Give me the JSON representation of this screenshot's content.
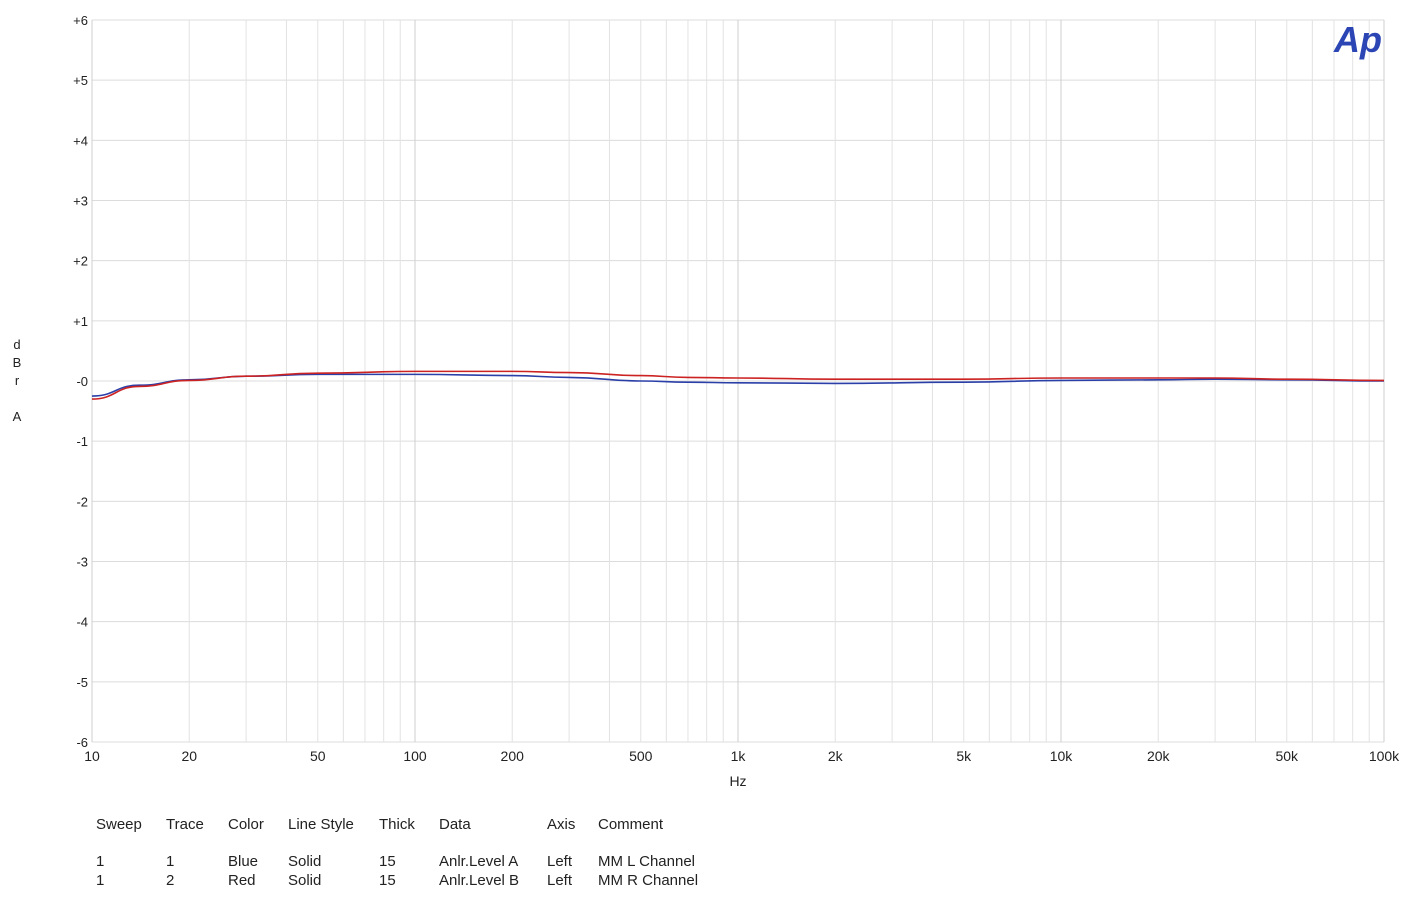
{
  "chart_data": {
    "type": "line",
    "x_scale": "log",
    "xlim": [
      10,
      100000
    ],
    "ylim": [
      -6,
      6
    ],
    "xlabel": "Hz",
    "ylabel": [
      "d",
      "B",
      "r",
      "",
      "A"
    ],
    "y_ticks": [
      "+6",
      "+5",
      "+4",
      "+3",
      "+2",
      "+1",
      "-0",
      "-1",
      "-2",
      "-3",
      "-4",
      "-5",
      "-6"
    ],
    "x_ticks": [
      {
        "value": 10,
        "label": "10"
      },
      {
        "value": 20,
        "label": "20"
      },
      {
        "value": 50,
        "label": "50"
      },
      {
        "value": 100,
        "label": "100"
      },
      {
        "value": 200,
        "label": "200"
      },
      {
        "value": 500,
        "label": "500"
      },
      {
        "value": 1000,
        "label": "1k"
      },
      {
        "value": 2000,
        "label": "2k"
      },
      {
        "value": 5000,
        "label": "5k"
      },
      {
        "value": 10000,
        "label": "10k"
      },
      {
        "value": 20000,
        "label": "20k"
      },
      {
        "value": 50000,
        "label": "50k"
      },
      {
        "value": 100000,
        "label": "100k"
      }
    ],
    "grid": true,
    "series": [
      {
        "color": "#2b3fa8",
        "x": [
          10,
          14,
          20,
          30,
          50,
          100,
          200,
          300,
          500,
          700,
          1000,
          2000,
          5000,
          10000,
          20000,
          30000,
          50000,
          100000
        ],
        "y": [
          -0.25,
          -0.07,
          0.02,
          0.08,
          0.11,
          0.11,
          0.09,
          0.06,
          0.0,
          -0.02,
          -0.03,
          -0.04,
          -0.02,
          0.01,
          0.02,
          0.03,
          0.02,
          0.0
        ]
      },
      {
        "color": "#cc2222",
        "x": [
          10,
          14,
          20,
          30,
          50,
          100,
          200,
          300,
          500,
          700,
          1000,
          2000,
          5000,
          10000,
          20000,
          30000,
          50000,
          100000
        ],
        "y": [
          -0.3,
          -0.09,
          0.01,
          0.08,
          0.13,
          0.16,
          0.16,
          0.14,
          0.09,
          0.06,
          0.05,
          0.03,
          0.03,
          0.05,
          0.05,
          0.05,
          0.03,
          0.01
        ]
      }
    ]
  },
  "legend": {
    "headers": [
      "Sweep",
      "Trace",
      "Color",
      "Line Style",
      "Thick",
      "Data",
      "Axis",
      "Comment"
    ],
    "rows": [
      [
        "1",
        "1",
        "Blue",
        "Solid",
        "15",
        "Anlr.Level A",
        "Left",
        "MM L Channel"
      ],
      [
        "1",
        "2",
        "Red",
        "Solid",
        "15",
        "Anlr.Level B",
        "Left",
        "MM R Channel"
      ]
    ]
  },
  "logo": {
    "text": "Ap",
    "color": "#2b45b5"
  }
}
